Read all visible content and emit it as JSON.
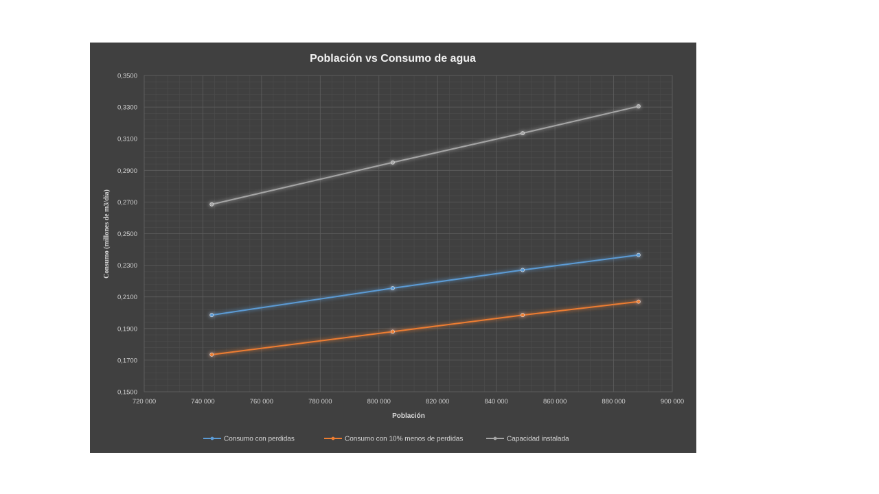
{
  "chart_data": {
    "type": "line",
    "title": "Población vs Consumo de agua",
    "xlabel": "Población",
    "ylabel": "Consumo (millones de m3/día)",
    "xlim": [
      720000,
      900000
    ],
    "ylim": [
      0.15,
      0.35
    ],
    "x_ticks": [
      "720 000",
      "740 000",
      "760 000",
      "780 000",
      "800 000",
      "820 000",
      "840 000",
      "860 000",
      "880 000",
      "900 000"
    ],
    "y_ticks": [
      "0,1500",
      "0,1700",
      "0,1900",
      "0,2100",
      "0,2300",
      "0,2500",
      "0,2700",
      "0,2900",
      "0,3100",
      "0,3300",
      "0,3500"
    ],
    "grid": true,
    "legend_position": "bottom",
    "series": [
      {
        "name": "Consumo con perdidas",
        "color": "#5b9bd5",
        "x": [
          743000,
          804700,
          849000,
          888500
        ],
        "y": [
          0.1985,
          0.2155,
          0.227,
          0.2365
        ]
      },
      {
        "name": "Consumo con 10% menos de perdidas",
        "color": "#ed7d31",
        "x": [
          743000,
          804700,
          849000,
          888500
        ],
        "y": [
          0.1735,
          0.188,
          0.1985,
          0.207
        ]
      },
      {
        "name": "Capacidad instalada",
        "color": "#a5a5a5",
        "x": [
          743000,
          804700,
          849000,
          888500
        ],
        "y": [
          0.2685,
          0.295,
          0.3135,
          0.3305
        ]
      }
    ]
  }
}
